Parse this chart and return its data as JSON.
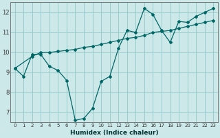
{
  "title": "",
  "xlabel": "Humidex (Indice chaleur)",
  "ylabel": "",
  "bg_color": "#cce8e8",
  "grid_color": "#99cccc",
  "line_color": "#006666",
  "xlim": [
    -0.5,
    23.5
  ],
  "ylim": [
    6.5,
    12.5
  ],
  "xticks": [
    0,
    1,
    2,
    3,
    4,
    5,
    6,
    7,
    8,
    9,
    10,
    11,
    12,
    13,
    14,
    15,
    16,
    17,
    18,
    19,
    20,
    21,
    22,
    23
  ],
  "yticks": [
    7,
    8,
    9,
    10,
    11,
    12
  ],
  "line1_x": [
    0,
    1,
    2,
    3,
    4,
    5,
    6,
    7,
    8,
    9,
    10,
    11,
    12,
    13,
    14,
    15,
    16,
    17,
    18,
    19,
    20,
    21,
    22,
    23
  ],
  "line1_y": [
    9.2,
    8.8,
    9.9,
    9.9,
    9.3,
    9.1,
    8.6,
    6.6,
    6.7,
    7.2,
    8.55,
    8.8,
    10.2,
    11.1,
    11.0,
    12.2,
    11.9,
    11.1,
    10.5,
    11.55,
    11.5,
    11.8,
    12.0,
    12.2
  ],
  "line2_x": [
    0,
    2,
    3,
    4,
    5,
    6,
    7,
    8,
    9,
    10,
    11,
    12,
    13,
    14,
    15,
    16,
    17,
    18,
    19,
    20,
    21,
    22,
    23
  ],
  "line2_y": [
    9.2,
    9.8,
    10.0,
    10.0,
    10.05,
    10.1,
    10.15,
    10.25,
    10.3,
    10.4,
    10.5,
    10.6,
    10.7,
    10.75,
    10.85,
    11.0,
    11.05,
    11.1,
    11.2,
    11.3,
    11.4,
    11.5,
    11.6
  ],
  "xlabel_fontsize": 6.5,
  "xtick_fontsize": 5,
  "ytick_fontsize": 6
}
